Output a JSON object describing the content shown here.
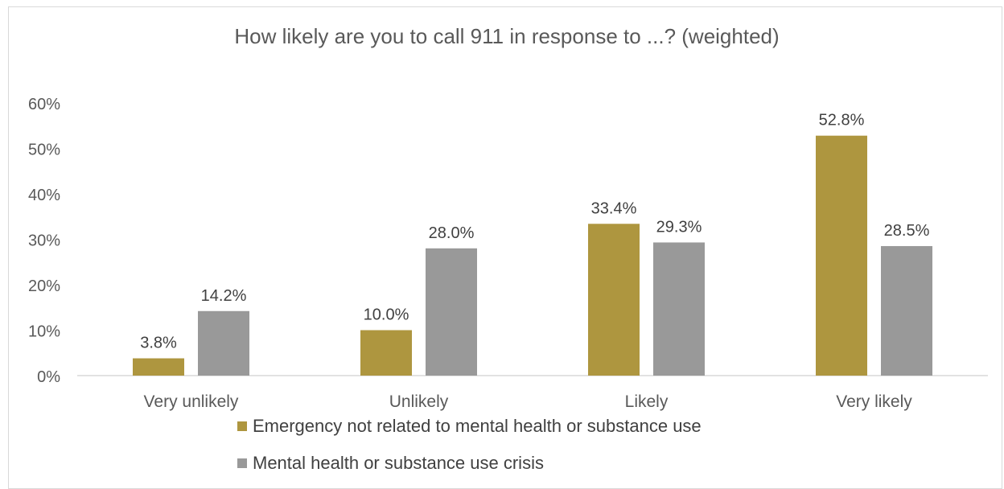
{
  "chart_data": {
    "type": "bar",
    "title": "How likely are you to call 911 in response to ...? (weighted)",
    "categories": [
      "Very unlikely",
      "Unlikely",
      "Likely",
      "Very likely"
    ],
    "series": [
      {
        "name": "Emergency not related to mental health or substance use",
        "color": "#AE963F",
        "values": [
          3.8,
          10.0,
          33.4,
          52.8
        ],
        "labels": [
          "3.8%",
          "10.0%",
          "33.4%",
          "52.8%"
        ]
      },
      {
        "name": "Mental health or substance use crisis",
        "color": "#999999",
        "values": [
          14.2,
          28.0,
          29.3,
          28.5
        ],
        "labels": [
          "14.2%",
          "28.0%",
          "29.3%",
          "28.5%"
        ]
      }
    ],
    "yticks": [
      "0%",
      "10%",
      "20%",
      "30%",
      "40%",
      "50%",
      "60%"
    ],
    "ylim": [
      0,
      60
    ],
    "grid": false,
    "legend_position": "bottom-left"
  }
}
